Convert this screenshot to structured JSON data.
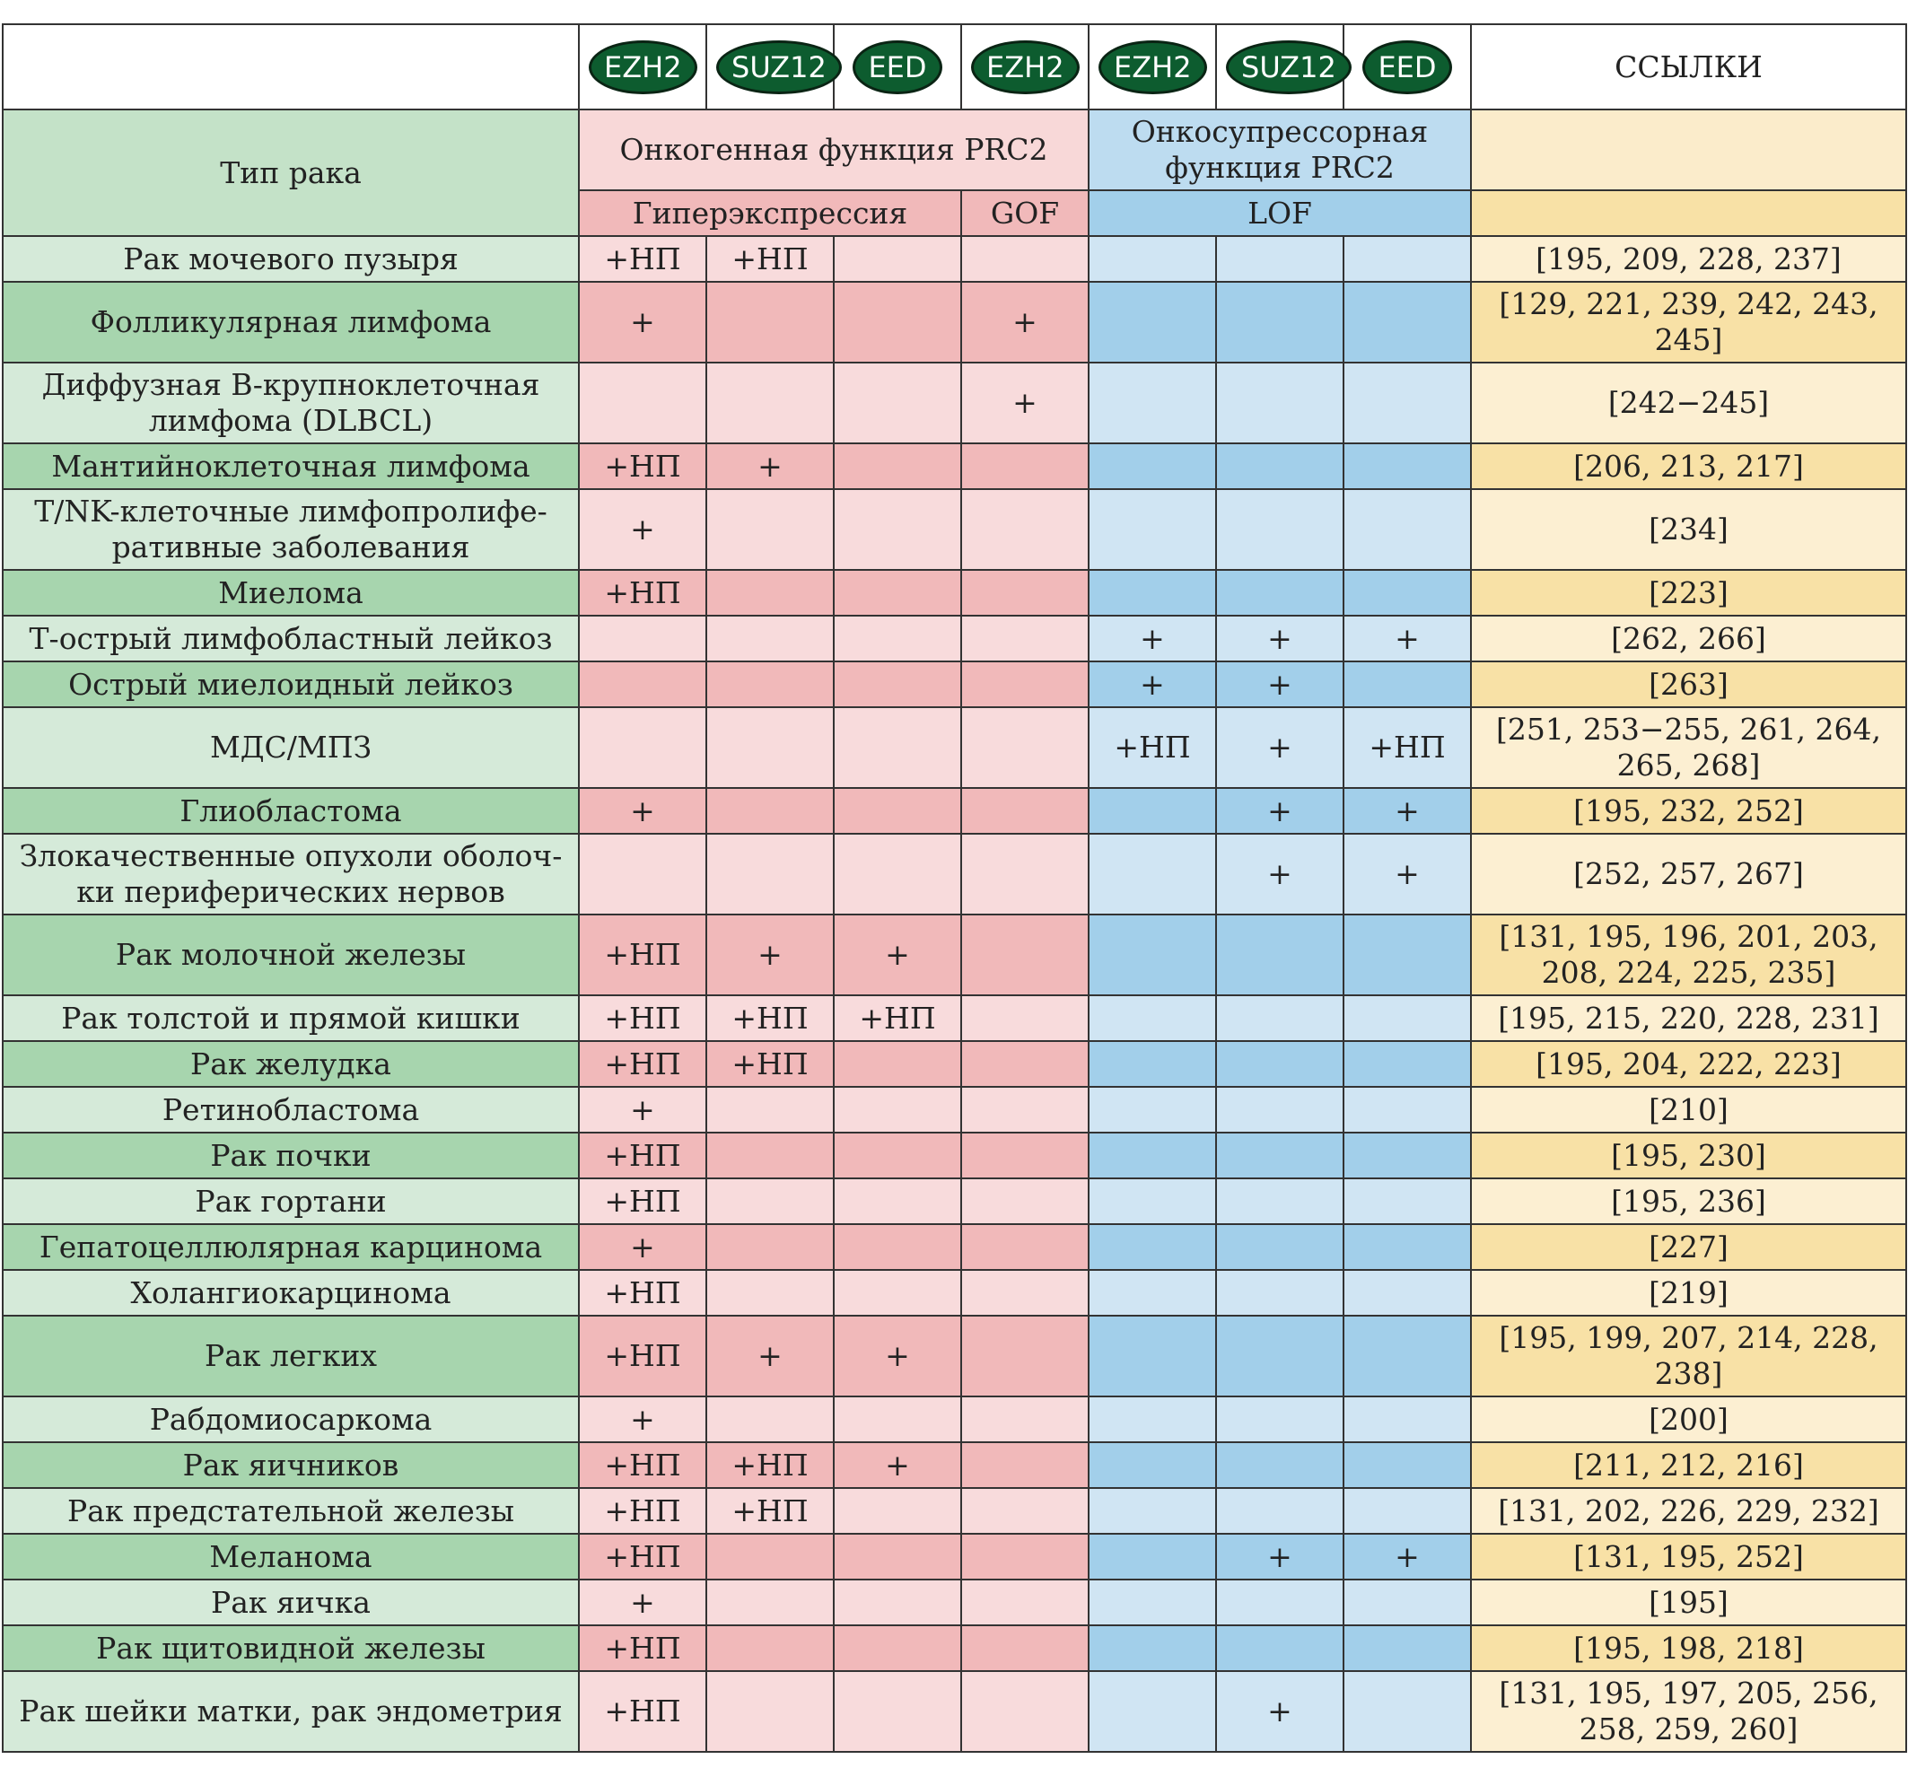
{
  "header": {
    "protein_labels": [
      "EZH2",
      "SUZ12",
      "EED",
      "EZH2",
      "EZH2",
      "SUZ12",
      "EED"
    ],
    "references_label": "ССЫЛКИ",
    "cancer_type_label": "Тип рака",
    "oncogenic_label": "Онкогенная функция PRC2",
    "suppressor_label": "Онкосупрессорная функция PRC2",
    "overexpression_label": "Гиперэкспрессия",
    "gof_label": "GOF",
    "lof_label": "LOF"
  },
  "rows": [
    {
      "cancer": "Рак мочевого пузыря",
      "cells": [
        "+НП",
        "+НП",
        "",
        "",
        "",
        "",
        ""
      ],
      "refs": "[195, 209, 228, 237]"
    },
    {
      "cancer": "Фолликулярная лимфома",
      "cells": [
        "+",
        "",
        "",
        "+",
        "",
        "",
        ""
      ],
      "refs": "[129, 221, 239, 242, 243, 245]"
    },
    {
      "cancer": "Диффузная В-крупноклеточная лимфома (DLBCL)",
      "cells": [
        "",
        "",
        "",
        "+",
        "",
        "",
        ""
      ],
      "refs": "[242−245]"
    },
    {
      "cancer": "Мантийноклеточная лимфома",
      "cells": [
        "+НП",
        "+",
        "",
        "",
        "",
        "",
        ""
      ],
      "refs": "[206, 213, 217]"
    },
    {
      "cancer": "T/NK-клеточные лимфопролифе-ративные заболевания",
      "cells": [
        "+",
        "",
        "",
        "",
        "",
        "",
        ""
      ],
      "refs": "[234]"
    },
    {
      "cancer": "Миелома",
      "cells": [
        "+НП",
        "",
        "",
        "",
        "",
        "",
        ""
      ],
      "refs": "[223]"
    },
    {
      "cancer": "Т-острый лимфобластный лейкоз",
      "cells": [
        "",
        "",
        "",
        "",
        "+",
        "+",
        "+"
      ],
      "refs": "[262, 266]"
    },
    {
      "cancer": "Острый миелоидный лейкоз",
      "cells": [
        "",
        "",
        "",
        "",
        "+",
        "+",
        ""
      ],
      "refs": "[263]"
    },
    {
      "cancer": "МДС/МПЗ",
      "cells": [
        "",
        "",
        "",
        "",
        "+НП",
        "+",
        "+НП"
      ],
      "refs": "[251, 253−255, 261, 264, 265, 268]"
    },
    {
      "cancer": "Глиобластома",
      "cells": [
        "+",
        "",
        "",
        "",
        "",
        "+",
        "+"
      ],
      "refs": "[195, 232, 252]"
    },
    {
      "cancer": "Злокачественные опухоли оболоч-ки периферических нервов",
      "cells": [
        "",
        "",
        "",
        "",
        "",
        "+",
        "+"
      ],
      "refs": "[252, 257, 267]"
    },
    {
      "cancer": "Рак молочной железы",
      "cells": [
        "+НП",
        "+",
        "+",
        "",
        "",
        "",
        ""
      ],
      "refs": "[131, 195, 196, 201, 203, 208, 224, 225, 235]"
    },
    {
      "cancer": "Рак толстой и прямой кишки",
      "cells": [
        "+НП",
        "+НП",
        "+НП",
        "",
        "",
        "",
        ""
      ],
      "refs": "[195, 215, 220, 228, 231]"
    },
    {
      "cancer": "Рак желудка",
      "cells": [
        "+НП",
        "+НП",
        "",
        "",
        "",
        "",
        ""
      ],
      "refs": "[195, 204, 222, 223]"
    },
    {
      "cancer": "Ретинобластома",
      "cells": [
        "+",
        "",
        "",
        "",
        "",
        "",
        ""
      ],
      "refs": "[210]"
    },
    {
      "cancer": "Рак почки",
      "cells": [
        "+НП",
        "",
        "",
        "",
        "",
        "",
        ""
      ],
      "refs": "[195, 230]"
    },
    {
      "cancer": "Рак гортани",
      "cells": [
        "+НП",
        "",
        "",
        "",
        "",
        "",
        ""
      ],
      "refs": "[195, 236]"
    },
    {
      "cancer": "Гепатоцеллюлярная карцинома",
      "cells": [
        "+",
        "",
        "",
        "",
        "",
        "",
        ""
      ],
      "refs": "[227]"
    },
    {
      "cancer": "Холангиокарцинома",
      "cells": [
        "+НП",
        "",
        "",
        "",
        "",
        "",
        ""
      ],
      "refs": "[219]"
    },
    {
      "cancer": "Рак легких",
      "cells": [
        "+НП",
        "+",
        "+",
        "",
        "",
        "",
        ""
      ],
      "refs": "[195, 199, 207, 214, 228, 238]"
    },
    {
      "cancer": "Рабдомиосаркома",
      "cells": [
        "+",
        "",
        "",
        "",
        "",
        "",
        ""
      ],
      "refs": "[200]"
    },
    {
      "cancer": "Рак яичников",
      "cells": [
        "+НП",
        "+НП",
        "+",
        "",
        "",
        "",
        ""
      ],
      "refs": "[211, 212, 216]"
    },
    {
      "cancer": "Рак предстательной железы",
      "cells": [
        "+НП",
        "+НП",
        "",
        "",
        "",
        "",
        ""
      ],
      "refs": "[131, 202, 226, 229, 232]"
    },
    {
      "cancer": "Меланома",
      "cells": [
        "+НП",
        "",
        "",
        "",
        "",
        "+",
        "+"
      ],
      "refs": "[131, 195, 252]"
    },
    {
      "cancer": "Рак яичка",
      "cells": [
        "+",
        "",
        "",
        "",
        "",
        "",
        ""
      ],
      "refs": "[195]"
    },
    {
      "cancer": "Рак щитовидной железы",
      "cells": [
        "+НП",
        "",
        "",
        "",
        "",
        "",
        ""
      ],
      "refs": "[195, 198, 218]"
    },
    {
      "cancer": "Рак шейки матки, рак эндометрия",
      "cells": [
        "+НП",
        "",
        "",
        "",
        "",
        "+",
        ""
      ],
      "refs": "[131, 195, 197, 205, 256, 258, 259, 260]"
    }
  ]
}
